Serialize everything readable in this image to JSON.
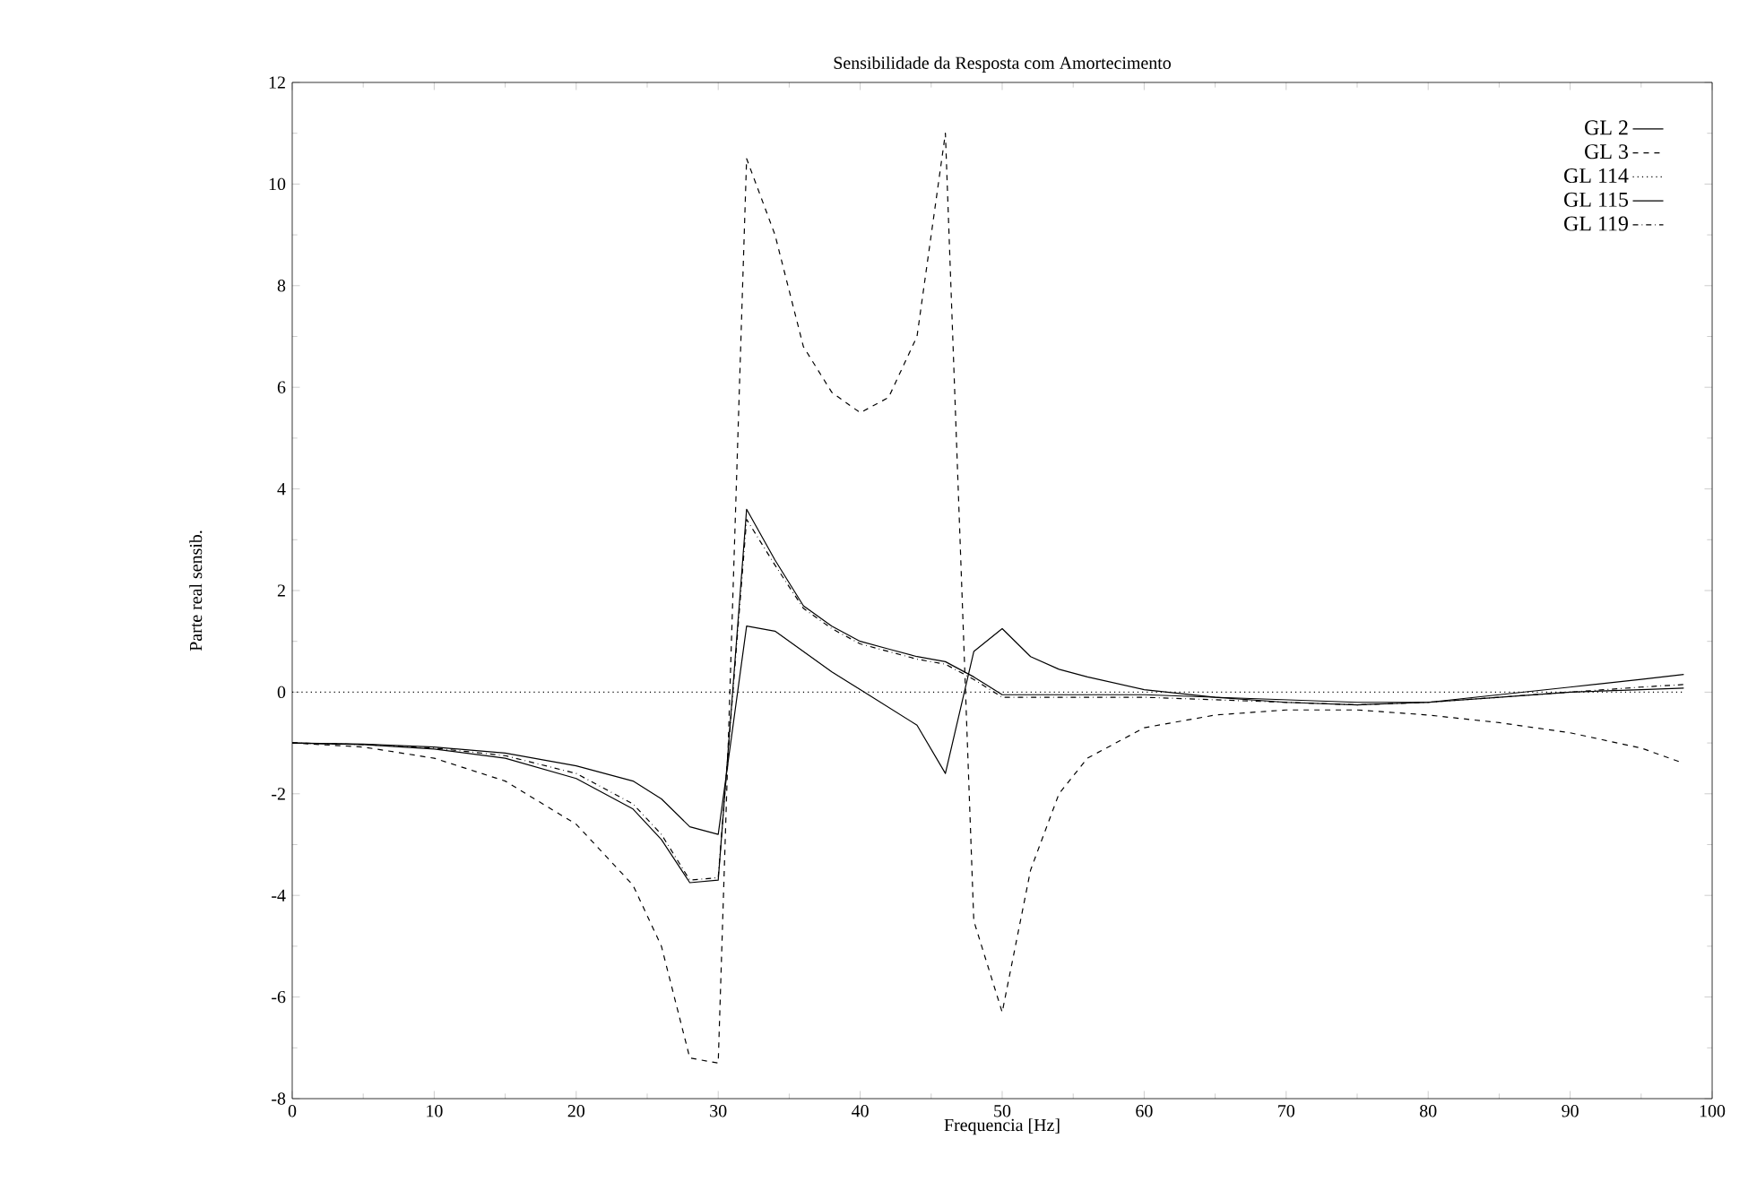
{
  "chart_data": {
    "type": "line",
    "title": "Sensibilidade da Resposta com Amortecimento",
    "xlabel": "Frequencia [Hz]",
    "ylabel": "Parte real sensib.",
    "xlim": [
      0,
      100
    ],
    "ylim": [
      -8,
      12
    ],
    "xticks": [
      0,
      10,
      20,
      30,
      40,
      50,
      60,
      70,
      80,
      90,
      100
    ],
    "yticks": [
      -8,
      -6,
      -4,
      -2,
      0,
      2,
      4,
      6,
      8,
      10,
      12
    ],
    "legend": "top right",
    "grid": false,
    "marker": "none",
    "x": [
      0,
      5,
      10,
      15,
      20,
      24,
      26,
      28,
      30,
      32,
      34,
      36,
      38,
      40,
      42,
      44,
      46,
      48,
      50,
      52,
      54,
      56,
      60,
      65,
      70,
      75,
      80,
      85,
      90,
      95,
      98
    ],
    "series": [
      {
        "name": "GL 2",
        "color": "#000000",
        "line_style": "solid",
        "values": [
          -1,
          -1.02,
          -1.08,
          -1.2,
          -1.45,
          -1.75,
          -2.1,
          -2.65,
          -2.8,
          1.3,
          1.2,
          0.8,
          0.4,
          0.05,
          -0.3,
          -0.65,
          -1.6,
          0.8,
          1.25,
          0.7,
          0.45,
          0.3,
          0.05,
          -0.1,
          -0.2,
          -0.25,
          -0.2,
          -0.05,
          0.1,
          0.25,
          0.35
        ]
      },
      {
        "name": "GL 3",
        "color": "#000000",
        "line_style": "dashed",
        "values": [
          -1,
          -1.08,
          -1.3,
          -1.75,
          -2.6,
          -3.8,
          -5.0,
          -7.2,
          -7.3,
          10.5,
          9.0,
          6.8,
          5.9,
          5.5,
          5.8,
          7.0,
          11.0,
          -4.5,
          -6.3,
          -3.5,
          -2.0,
          -1.3,
          -0.7,
          -0.45,
          -0.35,
          -0.35,
          -0.45,
          -0.6,
          -0.8,
          -1.1,
          -1.4
        ]
      },
      {
        "name": "GL 114",
        "color": "#000000",
        "line_style": "dotted",
        "values": [
          0,
          0,
          0,
          0,
          0,
          0,
          0,
          0,
          0,
          0,
          0,
          0,
          0,
          0,
          0,
          0,
          0,
          0,
          0,
          0,
          0,
          0,
          0,
          0,
          0,
          0,
          0,
          0,
          0,
          0,
          0
        ]
      },
      {
        "name": "GL 115",
        "color": "#000000",
        "line_style": "solid",
        "values": [
          -1,
          -1.03,
          -1.12,
          -1.3,
          -1.7,
          -2.3,
          -2.9,
          -3.75,
          -3.7,
          3.6,
          2.6,
          1.7,
          1.3,
          1.0,
          0.85,
          0.7,
          0.6,
          0.3,
          -0.05,
          -0.05,
          -0.05,
          -0.05,
          -0.05,
          -0.1,
          -0.15,
          -0.2,
          -0.2,
          -0.1,
          0,
          0.05,
          0.08
        ]
      },
      {
        "name": "GL 119",
        "color": "#000000",
        "line_style": "dashdot",
        "values": [
          -1,
          -1.03,
          -1.1,
          -1.25,
          -1.6,
          -2.2,
          -2.8,
          -3.7,
          -3.65,
          3.4,
          2.5,
          1.65,
          1.25,
          0.95,
          0.8,
          0.65,
          0.55,
          0.25,
          -0.1,
          -0.1,
          -0.1,
          -0.1,
          -0.1,
          -0.15,
          -0.2,
          -0.25,
          -0.2,
          -0.1,
          0,
          0.1,
          0.15
        ]
      }
    ]
  }
}
